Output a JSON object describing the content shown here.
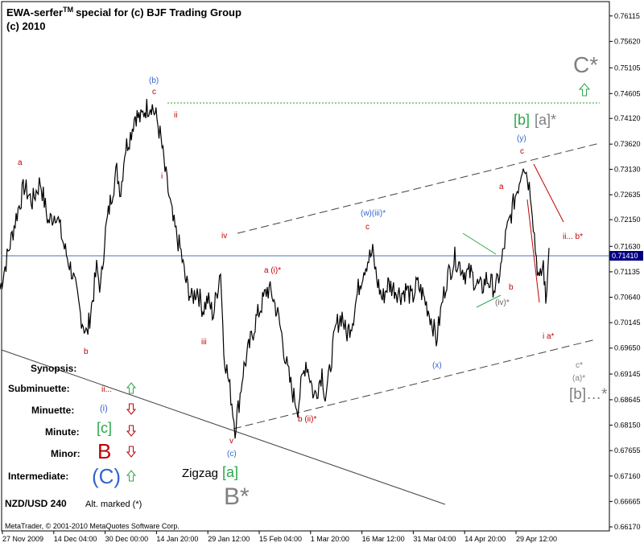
{
  "header": {
    "title_main": "EWA-serfer",
    "title_tm": "TM",
    "title_rest": "special for (c) BJF Trading Group",
    "subtitle": "(c) 2010"
  },
  "footer": {
    "credit": "MetaTrader, © 2001-2010 MetaQuotes Software Corp."
  },
  "colors": {
    "price": "#000000",
    "red": "#c00000",
    "blue": "#3366cc",
    "green": "#2aa84a",
    "gray": "#808080",
    "dashed_channel": "#555555",
    "target_line": "#2a9d2a",
    "current_price_line": "#4a73b5",
    "current_price_box": "#000080"
  },
  "chart_data": {
    "type": "line",
    "symbol": "NZD/USD",
    "timeframe": "240",
    "alt_note": "Alt. marked (*)",
    "y_axis": {
      "ylim": [
        0.6617,
        0.763
      ],
      "ticks": [
        "0.76115",
        "0.75620",
        "0.75105",
        "0.74605",
        "0.74120",
        "0.73620",
        "0.73130",
        "0.72635",
        "0.72150",
        "0.71630",
        "0.71135",
        "0.70640",
        "0.70145",
        "0.69650",
        "0.69145",
        "0.68645",
        "0.68150",
        "0.67655",
        "0.67160",
        "0.66665",
        "0.66170"
      ]
    },
    "x_axis": {
      "ticks": [
        "27 Nov 2009",
        "14 Dec 04:00",
        "30 Dec 00:00",
        "14 Jan 20:00",
        "29 Jan 12:00",
        "15 Feb 04:00",
        "1 Mar 20:00",
        "16 Mar 12:00",
        "31 Mar 04:00",
        "14 Apr 20:00",
        "29 Apr 12:00"
      ]
    },
    "current_price": 0.7141,
    "target_level": 0.7438,
    "price_path": [
      [
        0,
        0.708
      ],
      [
        10,
        0.715
      ],
      [
        20,
        0.722
      ],
      [
        30,
        0.728
      ],
      [
        40,
        0.725
      ],
      [
        50,
        0.729
      ],
      [
        60,
        0.721
      ],
      [
        70,
        0.723
      ],
      [
        80,
        0.716
      ],
      [
        90,
        0.711
      ],
      [
        100,
        0.703
      ],
      [
        108,
        0.699
      ],
      [
        115,
        0.706
      ],
      [
        120,
        0.712
      ],
      [
        125,
        0.708
      ],
      [
        130,
        0.718
      ],
      [
        138,
        0.726
      ],
      [
        145,
        0.731
      ],
      [
        150,
        0.727
      ],
      [
        155,
        0.735
      ],
      [
        162,
        0.738
      ],
      [
        168,
        0.742
      ],
      [
        175,
        0.741
      ],
      [
        180,
        0.743
      ],
      [
        188,
        0.744
      ],
      [
        195,
        0.741
      ],
      [
        200,
        0.737
      ],
      [
        205,
        0.731
      ],
      [
        210,
        0.726
      ],
      [
        215,
        0.721
      ],
      [
        220,
        0.718
      ],
      [
        225,
        0.715
      ],
      [
        230,
        0.71
      ],
      [
        238,
        0.706
      ],
      [
        245,
        0.708
      ],
      [
        252,
        0.704
      ],
      [
        258,
        0.706
      ],
      [
        265,
        0.703
      ],
      [
        270,
        0.708
      ],
      [
        274,
        0.712
      ],
      [
        278,
        0.696
      ],
      [
        283,
        0.691
      ],
      [
        288,
        0.686
      ],
      [
        292,
        0.681
      ],
      [
        297,
        0.686
      ],
      [
        302,
        0.692
      ],
      [
        310,
        0.697
      ],
      [
        318,
        0.702
      ],
      [
        325,
        0.705
      ],
      [
        332,
        0.708
      ],
      [
        338,
        0.707
      ],
      [
        345,
        0.703
      ],
      [
        350,
        0.699
      ],
      [
        355,
        0.694
      ],
      [
        360,
        0.69
      ],
      [
        365,
        0.687
      ],
      [
        370,
        0.685
      ],
      [
        375,
        0.69
      ],
      [
        380,
        0.694
      ],
      [
        385,
        0.691
      ],
      [
        390,
        0.687
      ],
      [
        395,
        0.689
      ],
      [
        400,
        0.692
      ],
      [
        404,
        0.687
      ],
      [
        408,
        0.69
      ],
      [
        412,
        0.695
      ],
      [
        418,
        0.701
      ],
      [
        425,
        0.703
      ],
      [
        430,
        0.699
      ],
      [
        438,
        0.702
      ],
      [
        445,
        0.708
      ],
      [
        452,
        0.712
      ],
      [
        458,
        0.714
      ],
      [
        463,
        0.715
      ],
      [
        468,
        0.71
      ],
      [
        475,
        0.706
      ],
      [
        482,
        0.709
      ],
      [
        490,
        0.708
      ],
      [
        498,
        0.707
      ],
      [
        505,
        0.708
      ],
      [
        512,
        0.706
      ],
      [
        518,
        0.709
      ],
      [
        525,
        0.707
      ],
      [
        532,
        0.704
      ],
      [
        538,
        0.701
      ],
      [
        542,
        0.698
      ],
      [
        546,
        0.702
      ],
      [
        550,
        0.706
      ],
      [
        555,
        0.71
      ],
      [
        560,
        0.712
      ],
      [
        565,
        0.714
      ],
      [
        570,
        0.713
      ],
      [
        578,
        0.711
      ],
      [
        585,
        0.711
      ],
      [
        592,
        0.709
      ],
      [
        598,
        0.708
      ],
      [
        604,
        0.71
      ],
      [
        610,
        0.709
      ],
      [
        616,
        0.708
      ],
      [
        622,
        0.712
      ],
      [
        628,
        0.718
      ],
      [
        634,
        0.722
      ],
      [
        640,
        0.726
      ],
      [
        645,
        0.729
      ],
      [
        650,
        0.733
      ],
      [
        655,
        0.73
      ],
      [
        660,
        0.726
      ],
      [
        665,
        0.716
      ],
      [
        670,
        0.709
      ],
      [
        675,
        0.713
      ],
      [
        678,
        0.705
      ],
      [
        682,
        0.716
      ]
    ]
  },
  "wave_labels": {
    "b_paren_blue": "(b)",
    "c_top": "c",
    "ii_1": "ii",
    "i_1": "i",
    "a_left": "a",
    "b_left": "b",
    "iii_1": "iii",
    "iv_1": "iv",
    "v_1": "v",
    "c_paren_bottom": "(c)",
    "a_paren_i": "a (i)*",
    "b_paren_ii": "b (ii)*",
    "w_iii": "(w)(iii)*",
    "c_mid": "c",
    "x_paren": "(x)",
    "a_right": "a",
    "b_right": "b",
    "iv_paren": "(iv)*",
    "y_paren": "(y)",
    "c_right": "c",
    "i_a_star": "i a*",
    "ii_b_star": "ii... b*",
    "c_star_small": "c*",
    "a_paren_star": "(a)*",
    "b_bracket_dots": "[b]…*",
    "b_bracket_green": "[b]",
    "a_bracket_gray": "[a]*",
    "c_star_big": "C*",
    "zigzag": "Zigzag",
    "a_bracket_zig": "[a]",
    "b_star_big": "B*"
  },
  "legend": {
    "title": "Synopsis:",
    "rows": [
      {
        "label": "Subminuette:",
        "symbol": "ii...",
        "color": "#c00000",
        "arrow": "up",
        "size": "small"
      },
      {
        "label": "Minuette:",
        "symbol": "(i)",
        "color": "#3366cc",
        "arrow": "down",
        "size": "small"
      },
      {
        "label": "Minute:",
        "symbol": "[c]",
        "color": "#2aa84a",
        "arrow": "down",
        "size": "medium"
      },
      {
        "label": "Minor:",
        "symbol": "B",
        "color": "#c00000",
        "arrow": "down",
        "size": "large"
      },
      {
        "label": "Intermediate:",
        "symbol": "(C)",
        "color": "#3366cc",
        "arrow": "up",
        "size": "large"
      }
    ]
  },
  "symbol_caption": {
    "pair": "NZD/USD 240",
    "note": "Alt. marked (*)"
  },
  "price_box_label": "0.71410"
}
